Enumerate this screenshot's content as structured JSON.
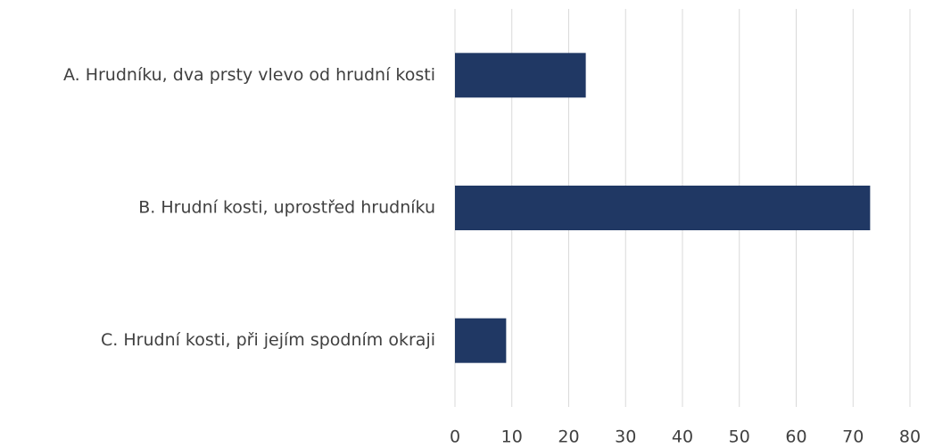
{
  "chart_data": {
    "type": "bar",
    "orientation": "horizontal",
    "categories": [
      "A. Hrudníku, dva prsty vlevo od hrudní kosti",
      "B. Hrudní kosti, uprostřed hrudníku",
      "C. Hrudní kosti, při jejím spodním okraji"
    ],
    "values": [
      23,
      73,
      9
    ],
    "color": "#203864",
    "xlim": [
      0,
      80
    ],
    "xticks": [
      0,
      10,
      20,
      30,
      40,
      50,
      60,
      70,
      80
    ],
    "grid": true
  }
}
